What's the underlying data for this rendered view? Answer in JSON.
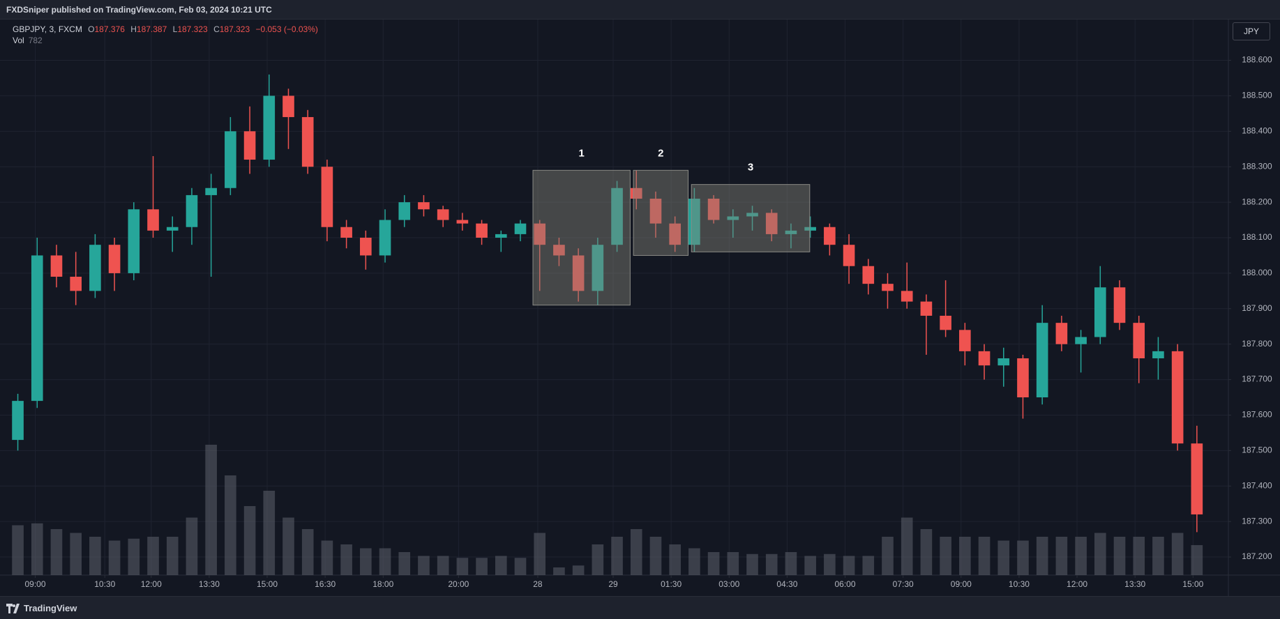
{
  "header": "FXDSniper published on TradingView.com, Feb 03, 2024 10:21 UTC",
  "footer_brand": "TradingView",
  "currency": "JPY",
  "chart_data": {
    "type": "candlestick",
    "legend": {
      "symbol": "GBPJPY, 3, FXCM",
      "o_label": "O",
      "o": 187.376,
      "h_label": "H",
      "h": 187.387,
      "l_label": "L",
      "l": 187.323,
      "c_label": "C",
      "c": 187.323,
      "change": "−0.053 (−0.03%)",
      "vol_label": "Vol",
      "vol": 782
    },
    "up_color": "#26a69a",
    "down_color": "#ef5350",
    "volume_color": "#5d606b",
    "grid": true,
    "xlim": [
      0,
      62
    ],
    "xticks": [
      {
        "value": 1.4,
        "label": "09:00"
      },
      {
        "value": 5.0,
        "label": "10:30"
      },
      {
        "value": 7.4,
        "label": "12:00"
      },
      {
        "value": 10.4,
        "label": "13:30"
      },
      {
        "value": 13.4,
        "label": "15:00"
      },
      {
        "value": 16.4,
        "label": "16:30"
      },
      {
        "value": 19.4,
        "label": "18:00"
      },
      {
        "value": 23.3,
        "label": "20:00"
      },
      {
        "value": 27.4,
        "label": "28"
      },
      {
        "value": 31.3,
        "label": "29"
      },
      {
        "value": 34.3,
        "label": "01:30"
      },
      {
        "value": 37.3,
        "label": "03:00"
      },
      {
        "value": 40.3,
        "label": "04:30"
      },
      {
        "value": 43.3,
        "label": "06:00"
      },
      {
        "value": 46.3,
        "label": "07:30"
      },
      {
        "value": 49.3,
        "label": "09:00"
      },
      {
        "value": 52.3,
        "label": "10:30"
      },
      {
        "value": 55.3,
        "label": "12:00"
      },
      {
        "value": 58.3,
        "label": "13:30"
      },
      {
        "value": 61.3,
        "label": "15:00"
      }
    ],
    "ylim": [
      187.149,
      188.715
    ],
    "yticks": [
      {
        "value": 187.2,
        "label": "187.200"
      },
      {
        "value": 187.3,
        "label": "187.300"
      },
      {
        "value": 187.4,
        "label": "187.400"
      },
      {
        "value": 187.5,
        "label": "187.500"
      },
      {
        "value": 187.6,
        "label": "187.600"
      },
      {
        "value": 187.7,
        "label": "187.700"
      },
      {
        "value": 187.8,
        "label": "187.800"
      },
      {
        "value": 187.9,
        "label": "187.900"
      },
      {
        "value": 188.0,
        "label": "188.000"
      },
      {
        "value": 188.1,
        "label": "188.100"
      },
      {
        "value": 188.2,
        "label": "188.200"
      },
      {
        "value": 188.3,
        "label": "188.300"
      },
      {
        "value": 188.4,
        "label": "188.400"
      },
      {
        "value": 188.5,
        "label": "188.500"
      },
      {
        "value": 188.6,
        "label": "188.600"
      }
    ],
    "open": [
      187.53,
      187.64,
      188.05,
      187.99,
      187.95,
      188.08,
      188.0,
      188.18,
      188.12,
      188.13,
      188.22,
      188.24,
      188.4,
      188.32,
      188.5,
      188.44,
      188.3,
      188.13,
      188.1,
      188.05,
      188.15,
      188.2,
      188.18,
      188.15,
      188.14,
      188.1,
      188.11,
      188.14,
      188.08,
      188.05,
      187.95,
      188.08,
      188.24,
      188.21,
      188.14,
      188.08,
      188.21,
      188.15,
      188.16,
      188.17,
      188.11,
      188.12,
      188.13,
      188.08,
      188.02,
      187.97,
      187.95,
      187.92,
      187.88,
      187.84,
      187.78,
      187.74,
      187.76,
      187.65,
      187.86,
      187.8,
      187.82,
      187.96,
      187.86,
      187.76,
      187.78,
      187.52
    ],
    "high": [
      187.66,
      188.1,
      188.08,
      188.06,
      188.11,
      188.1,
      188.2,
      188.33,
      188.16,
      188.24,
      188.28,
      188.44,
      188.47,
      188.56,
      188.52,
      188.46,
      188.32,
      188.15,
      188.12,
      188.18,
      188.22,
      188.22,
      188.19,
      188.17,
      188.15,
      188.12,
      188.15,
      188.15,
      188.1,
      188.07,
      188.1,
      188.26,
      188.29,
      188.23,
      188.16,
      188.24,
      188.22,
      188.18,
      188.19,
      188.18,
      188.14,
      188.16,
      188.14,
      188.11,
      188.04,
      188.0,
      188.03,
      187.94,
      187.98,
      187.86,
      187.8,
      187.79,
      187.77,
      187.91,
      187.88,
      187.84,
      188.02,
      187.98,
      187.88,
      187.82,
      187.8,
      187.57
    ],
    "low": [
      187.5,
      187.62,
      187.96,
      187.91,
      187.93,
      187.95,
      187.98,
      188.1,
      188.06,
      188.08,
      187.99,
      188.22,
      188.28,
      188.3,
      188.35,
      188.28,
      188.09,
      188.07,
      188.01,
      188.03,
      188.13,
      188.16,
      188.13,
      188.12,
      188.08,
      188.06,
      188.09,
      187.95,
      188.02,
      187.92,
      187.91,
      188.06,
      188.18,
      188.1,
      188.06,
      188.06,
      188.14,
      188.1,
      188.12,
      188.09,
      188.07,
      188.1,
      188.05,
      187.97,
      187.94,
      187.9,
      187.9,
      187.77,
      187.82,
      187.74,
      187.7,
      187.68,
      187.59,
      187.63,
      187.78,
      187.72,
      187.8,
      187.84,
      187.69,
      187.7,
      187.5,
      187.27
    ],
    "close": [
      187.64,
      188.05,
      187.99,
      187.95,
      188.08,
      188.0,
      188.18,
      188.12,
      188.13,
      188.22,
      188.24,
      188.4,
      188.32,
      188.5,
      188.44,
      188.3,
      188.13,
      188.1,
      188.05,
      188.15,
      188.2,
      188.18,
      188.15,
      188.14,
      188.1,
      188.11,
      188.14,
      188.08,
      188.05,
      187.95,
      188.08,
      188.24,
      188.21,
      188.14,
      188.08,
      188.21,
      188.15,
      188.16,
      188.17,
      188.11,
      188.12,
      188.13,
      188.08,
      188.02,
      187.97,
      187.95,
      187.92,
      187.88,
      187.84,
      187.78,
      187.74,
      187.76,
      187.65,
      187.86,
      187.8,
      187.82,
      187.96,
      187.86,
      187.76,
      187.78,
      187.52,
      187.32
    ],
    "volume": [
      1300,
      1350,
      1200,
      1100,
      1000,
      900,
      950,
      1000,
      1000,
      1500,
      3400,
      2600,
      1800,
      2200,
      1500,
      1200,
      900,
      800,
      700,
      700,
      600,
      500,
      500,
      450,
      450,
      500,
      450,
      1100,
      200,
      250,
      800,
      1000,
      1200,
      1000,
      800,
      700,
      600,
      600,
      550,
      550,
      600,
      500,
      550,
      500,
      500,
      1000,
      1500,
      1200,
      1000,
      1000,
      1000,
      900,
      900,
      1000,
      1000,
      1000,
      1100,
      1000,
      1000,
      1000,
      1100,
      782
    ],
    "annotations": [
      {
        "label": "1",
        "x0": 27.15,
        "x1": 32.18,
        "y0": 187.91,
        "y1": 188.29
      },
      {
        "label": "2",
        "x0": 32.35,
        "x1": 35.18,
        "y0": 188.05,
        "y1": 188.29
      },
      {
        "label": "3",
        "x0": 35.35,
        "x1": 41.47,
        "y0": 188.06,
        "y1": 188.25
      }
    ]
  }
}
